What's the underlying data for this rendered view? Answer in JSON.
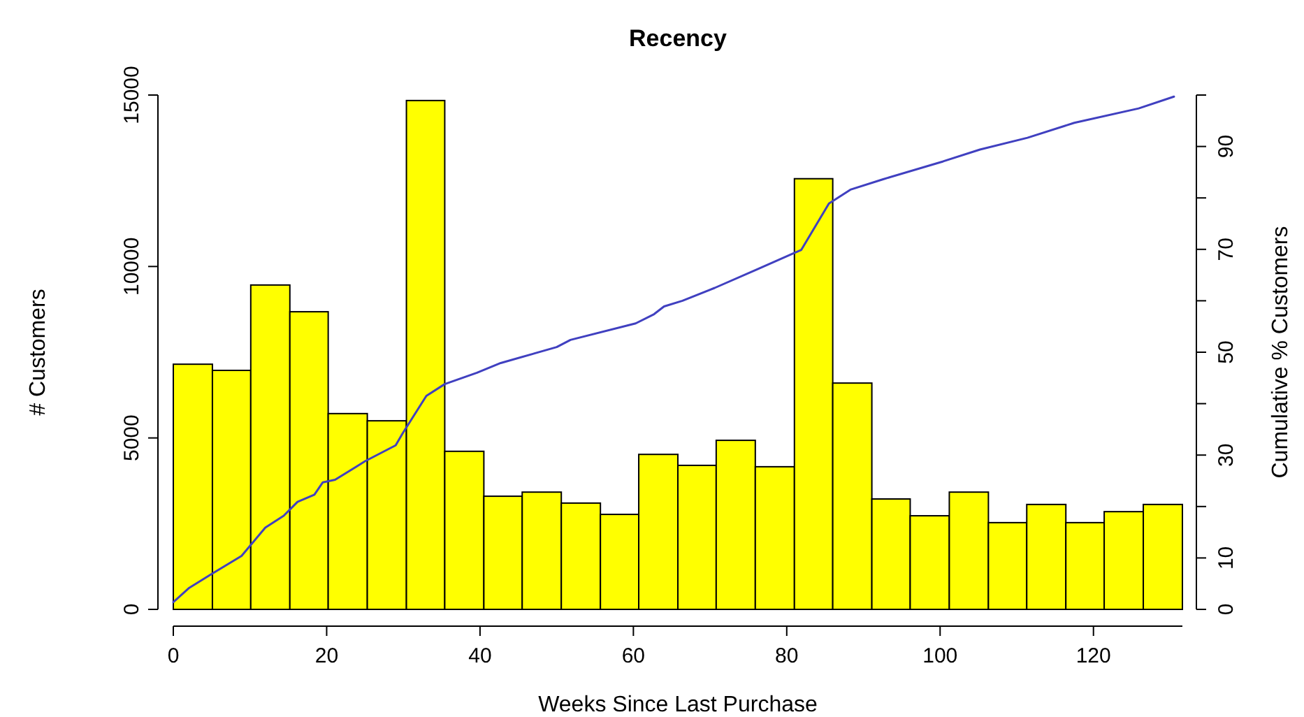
{
  "chart_data": {
    "type": "histogram",
    "title": "Recency",
    "xlabel": "Weeks Since Last Purchase",
    "ylabel": "# Customers",
    "y2label": "Cumulative % Customers",
    "bins": [
      0,
      5.1,
      10.1,
      15.2,
      20.2,
      25.3,
      30.4,
      35.4,
      40.5,
      45.5,
      50.6,
      55.7,
      60.7,
      65.8,
      70.8,
      75.9,
      81,
      86,
      91.1,
      96.1,
      101.2,
      106.3,
      111.3,
      116.4,
      121.4,
      126.5,
      131.6
    ],
    "series": [
      {
        "color": "#ffff00",
        "values": [
          7150,
          6970,
          9460,
          8680,
          5710,
          5500,
          14840,
          4610,
          3300,
          3420,
          3100,
          2770,
          4520,
          4200,
          4930,
          4160,
          12560,
          6600,
          3220,
          2730,
          3420,
          2530,
          3060,
          2530,
          2850,
          3060
        ]
      },
      {
        "type": "line",
        "axis": "y2",
        "color": "#4040c0",
        "x": [
          0,
          2,
          4.9,
          8.9,
          12,
          14.4,
          16.2,
          18.4,
          19.5,
          21.1,
          25,
          29,
          29.9,
          33,
          35.4,
          39.6,
          42.7,
          50,
          51.8,
          60.3,
          62.7,
          64,
          66.4,
          70.6,
          76.1,
          81,
          81.9,
          85.5,
          88.3,
          92.5,
          100.4,
          105.2,
          111.4,
          117.5,
          125.9,
          130.5
        ],
        "values": [
          1.4,
          4.1,
          6.8,
          10.4,
          15.9,
          18.2,
          20.9,
          22.3,
          24.7,
          25.2,
          28.8,
          31.9,
          34.2,
          41.5,
          43.8,
          46,
          47.9,
          51,
          52.4,
          55.6,
          57.4,
          58.9,
          60,
          62.5,
          66.1,
          69.3,
          69.9,
          78.9,
          81.6,
          83.6,
          87.1,
          89.4,
          91.7,
          94.6,
          97.4,
          99.7
        ]
      }
    ],
    "xlim": [
      0,
      131.6
    ],
    "xticks": [
      0,
      20,
      40,
      60,
      80,
      100,
      120
    ],
    "ylim": [
      0,
      15000
    ],
    "yticks": [
      0,
      5000,
      10000,
      15000
    ],
    "y2lim": [
      0,
      100
    ],
    "y2ticks": [
      0,
      10,
      {
        "value": 20,
        "label": null
      },
      30,
      {
        "value": 40,
        "label": null
      },
      50,
      {
        "value": 60,
        "label": null
      },
      70,
      {
        "value": 80,
        "label": null
      },
      90,
      {
        "value": 100,
        "label": null
      }
    ],
    "grid": false
  }
}
